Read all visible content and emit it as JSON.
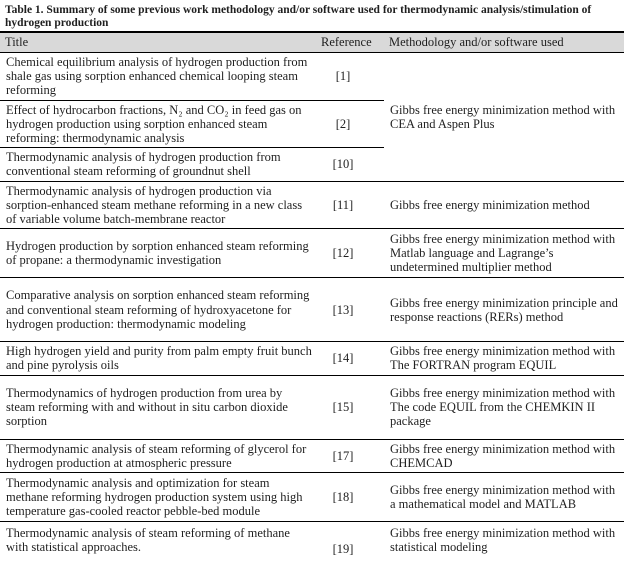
{
  "table": {
    "caption": "Table 1. Summary of some previous work methodology and/or software used for thermodynamic analysis/stimulation of hydrogen production",
    "columns": {
      "title": "Title",
      "reference": "Reference",
      "methodology": "Methodology and/or software used"
    },
    "colors": {
      "header_background": "#d9d9d9",
      "text": "#1f1f1f",
      "border": "#000000"
    },
    "rows": [
      {
        "title": "Chemical equilibrium analysis of hydrogen production from shale gas using sorption enhanced chemical looping steam reforming",
        "reference": "[1]",
        "methodology": "Gibbs free energy minimization method with CEA and Aspen Plus"
      },
      {
        "title": "Effect of hydrocarbon fractions, N₂ and CO₂ in feed gas on hydrogen production using sorption enhanced steam reforming: thermodynamic analysis",
        "reference": "[2]"
      },
      {
        "title": "Thermodynamic analysis of hydrogen production from conventional steam reforming of groundnut shell",
        "reference": "[10]"
      },
      {
        "title": "Thermodynamic analysis of hydrogen production via sorption-enhanced steam methane reforming in a new class of variable volume batch-membrane reactor",
        "reference": "[11]",
        "methodology": "Gibbs free energy minimization method"
      },
      {
        "title": "Hydrogen production by sorption enhanced steam reforming of propane: a thermodynamic investigation",
        "reference": "[12]",
        "methodology": "Gibbs free energy minimization method with Matlab language and Lagrange’s undetermined multiplier method"
      },
      {
        "title": "Comparative analysis on sorption enhanced steam reforming and conventional steam reforming of hydroxyacetone for hydrogen production: thermodynamic modeling",
        "reference": "[13]",
        "methodology": "Gibbs free energy minimization principle and response reactions (RERs) method"
      },
      {
        "title": "High hydrogen yield and purity from palm empty fruit bunch and pine pyrolysis oils",
        "reference": "[14]",
        "methodology": "Gibbs free energy minimization method with The FORTRAN program EQUIL"
      },
      {
        "title": "Thermodynamics of hydrogen production from urea by steam reforming with and without in situ carbon dioxide sorption",
        "reference": "[15]",
        "methodology": "Gibbs free energy minimization method with The code EQUIL from the CHEMKIN II package"
      },
      {
        "title": "Thermodynamic analysis of steam reforming of glycerol for hydrogen production at atmospheric pressure",
        "reference": "[17]",
        "methodology": "Gibbs free energy minimization method with CHEMCAD"
      },
      {
        "title": "Thermodynamic analysis and optimization for steam methane reforming hydrogen production system using high temperature gas-cooled reactor pebble-bed module",
        "reference": "[18]",
        "methodology": "Gibbs free energy minimization method with a mathematical model and MATLAB"
      },
      {
        "title": "Thermodynamic analysis of steam reforming of methane with statistical approaches.",
        "reference": "[19]",
        "methodology": "Gibbs free energy minimization method with statistical modeling"
      }
    ]
  }
}
